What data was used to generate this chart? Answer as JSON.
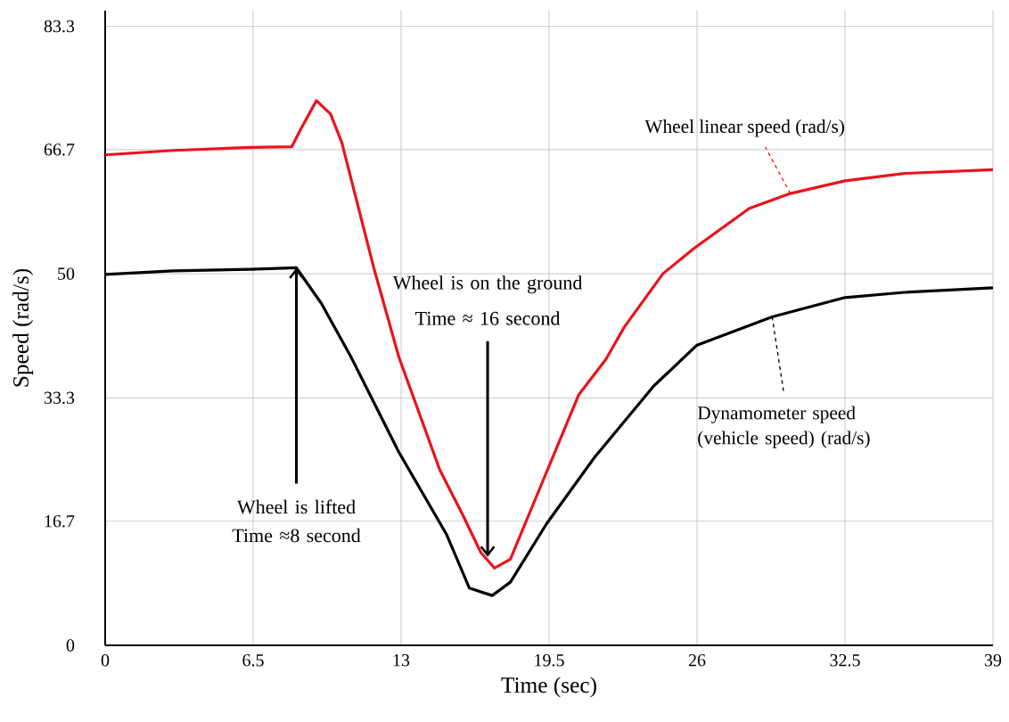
{
  "chart_data": {
    "type": "line",
    "xlabel": "Time (sec)",
    "ylabel": "Speed (rad/s)",
    "xlim": [
      0,
      39
    ],
    "ylim": [
      0,
      85.4
    ],
    "xticks": [
      0,
      6.5,
      13,
      19.5,
      26,
      32.5,
      39
    ],
    "yticks": [
      0,
      16.7,
      33.3,
      50,
      66.7,
      83.3
    ],
    "grid": true,
    "series": [
      {
        "name": "Wheel linear speed (rad/s)",
        "color": "#e8141c",
        "x": [
          0,
          3,
          6.4,
          8.2,
          8.6,
          9.28,
          9.9,
          10.4,
          11.8,
          12.9,
          14.7,
          15.7,
          16.5,
          17.1,
          17.8,
          18.9,
          20.8,
          22.0,
          22.8,
          24.5,
          25.9,
          28.3,
          30.1,
          32.5,
          35.1,
          39
        ],
        "values": [
          66.0,
          66.6,
          67.0,
          67.1,
          69.5,
          73.3,
          71.5,
          67.6,
          50.8,
          38.8,
          23.6,
          17.6,
          12.5,
          10.4,
          11.6,
          19.7,
          33.7,
          38.5,
          42.8,
          50.0,
          53.5,
          58.8,
          60.8,
          62.5,
          63.5,
          64.0
        ]
      },
      {
        "name": "Dynamometer speed (vehicle speed) (rad/s)",
        "color": "#000000",
        "x": [
          0,
          3,
          6.4,
          8.4,
          9.5,
          10.8,
          12.9,
          15.0,
          16.0,
          17.0,
          17.8,
          19.4,
          21.5,
          24.1,
          26.0,
          29.3,
          32.5,
          35.1,
          39
        ],
        "values": [
          49.9,
          50.4,
          50.6,
          50.8,
          46.0,
          38.8,
          26.0,
          14.9,
          7.7,
          6.7,
          8.5,
          16.4,
          25.3,
          34.9,
          40.4,
          44.2,
          46.8,
          47.5,
          48.1
        ]
      }
    ],
    "annotations": [
      {
        "text": "Wheel is lifted Time ≈8 second",
        "x": 8.4,
        "y": 50.8
      },
      {
        "text": "Wheel is on the ground Time ≈ 16 second",
        "x": 16.8,
        "y": 11.9
      }
    ]
  }
}
